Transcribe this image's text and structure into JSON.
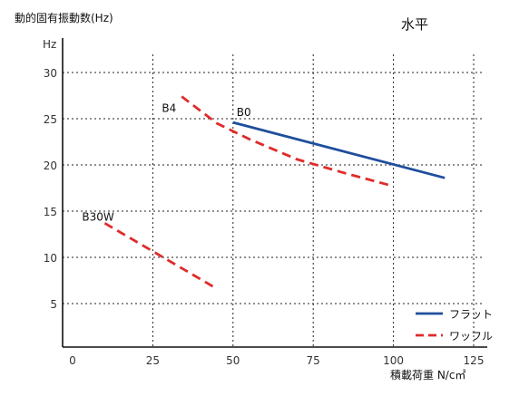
{
  "chart_data": {
    "type": "line",
    "title": "水平",
    "ylabel": "動的固有振動数(Hz)",
    "yunit": "Hz",
    "xlabel": "積載荷重 N/c㎡",
    "xlim": [
      0,
      125
    ],
    "ylim": [
      0,
      30
    ],
    "xticks": [
      0,
      25,
      50,
      75,
      100,
      125
    ],
    "yticks": [
      5,
      10,
      15,
      20,
      25,
      30
    ],
    "grid": true,
    "legend_position": "bottom-right",
    "legend": [
      {
        "label": "フラット",
        "color": "#1f4e9c",
        "style": "solid"
      },
      {
        "label": "ワッフル",
        "color": "#e02b2b",
        "style": "dashed"
      }
    ],
    "series": [
      {
        "name": "B0",
        "group": "フラット",
        "color": "#1f4e9c",
        "style": "solid",
        "x": [
          50,
          116
        ],
        "y": [
          24.6,
          18.6
        ]
      },
      {
        "name": "B4",
        "group": "ワッフル",
        "color": "#e02b2b",
        "style": "dashed",
        "x": [
          34,
          45,
          55,
          70,
          85,
          100
        ],
        "y": [
          27.4,
          24.5,
          22.8,
          20.6,
          19.1,
          17.7
        ]
      },
      {
        "name": "B30W",
        "group": "ワッフル",
        "color": "#e02b2b",
        "style": "dashed",
        "x": [
          10,
          45
        ],
        "y": [
          13.7,
          6.6
        ]
      }
    ]
  }
}
